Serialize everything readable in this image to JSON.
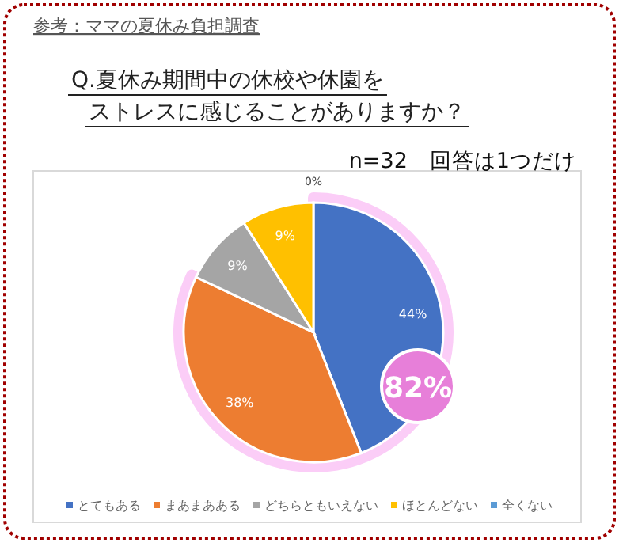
{
  "chart_data": {
    "type": "pie",
    "subtitle": "参考：ママの夏休み負担調査",
    "title": "Q.夏休み期間中の休校や休園をストレスに感じることがありますか？",
    "categories": [
      "とてもある",
      "まあまあある",
      "どちらともいえない",
      "ほとんどない",
      "全くない"
    ],
    "values": [
      44,
      38,
      9,
      9,
      0
    ],
    "colors": [
      "#4472c4",
      "#ed7d31",
      "#a5a5a5",
      "#ffc000",
      "#5b9bd5"
    ],
    "value_labels": [
      "44%",
      "38%",
      "9%",
      "9%",
      "0%"
    ],
    "annotations": [
      "n=32　回答は1つだけ",
      "82%"
    ],
    "legend": "bottom"
  }
}
